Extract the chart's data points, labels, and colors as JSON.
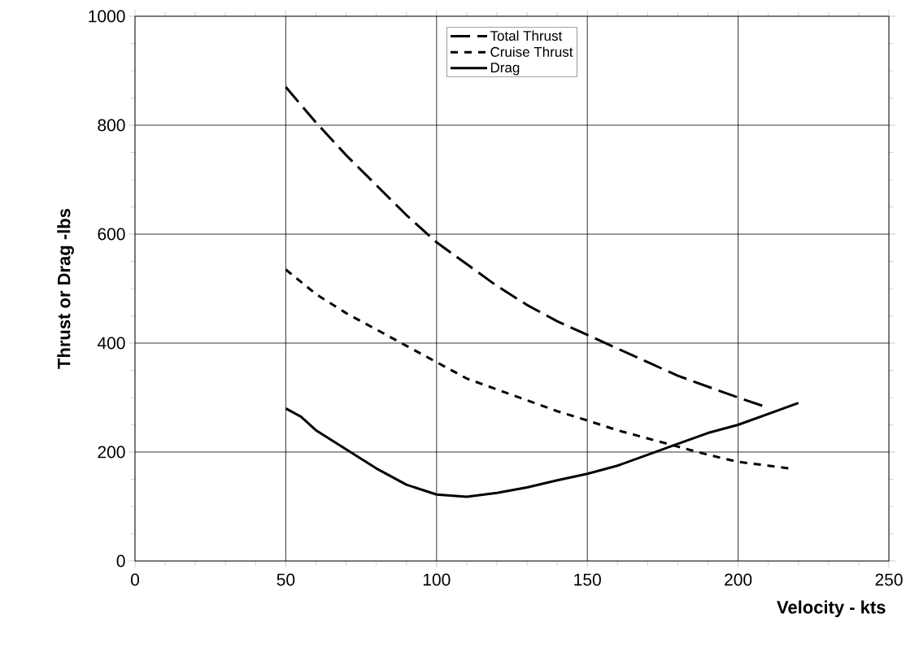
{
  "chart_data": {
    "type": "line",
    "xlabel": "Velocity - kts",
    "ylabel": "Thrust or Drag -lbs",
    "xlim": [
      0,
      250
    ],
    "ylim": [
      0,
      1000
    ],
    "xticks": [
      0,
      50,
      100,
      150,
      200,
      250
    ],
    "yticks": [
      0,
      200,
      400,
      600,
      800,
      1000
    ],
    "grid": true,
    "legend": "top",
    "marker": "none",
    "series": [
      {
        "name": "Total Thrust",
        "color": "#000000",
        "line_style": "dashed",
        "x": [
          50,
          60,
          70,
          80,
          90,
          100,
          110,
          120,
          130,
          140,
          150,
          160,
          170,
          180,
          190,
          200,
          208
        ],
        "values": [
          870,
          805,
          745,
          690,
          635,
          585,
          545,
          505,
          470,
          440,
          415,
          390,
          365,
          340,
          320,
          300,
          285
        ]
      },
      {
        "name": "Cruise Thrust",
        "color": "#000000",
        "line_style": "dotted",
        "x": [
          50,
          60,
          70,
          80,
          90,
          100,
          110,
          120,
          130,
          140,
          150,
          160,
          170,
          180,
          190,
          200,
          210,
          217
        ],
        "values": [
          535,
          490,
          455,
          425,
          395,
          365,
          335,
          315,
          295,
          275,
          258,
          240,
          225,
          210,
          195,
          182,
          175,
          170
        ]
      },
      {
        "name": "Drag",
        "color": "#000000",
        "line_style": "solid",
        "x": [
          50,
          55,
          60,
          70,
          80,
          90,
          100,
          110,
          120,
          130,
          140,
          150,
          160,
          170,
          180,
          190,
          200,
          210,
          220
        ],
        "values": [
          280,
          265,
          240,
          205,
          170,
          140,
          122,
          118,
          125,
          135,
          148,
          160,
          175,
          195,
          215,
          235,
          250,
          270,
          290
        ]
      }
    ]
  }
}
